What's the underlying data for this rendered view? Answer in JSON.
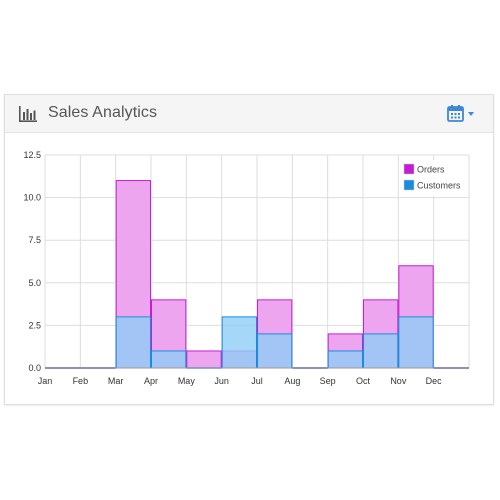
{
  "widget": {
    "title": "Sales Analytics",
    "header_icon": "bar-chart-icon",
    "toolbar_icon": "calendar-icon",
    "toolbar_caret_icon": "caret-down-icon",
    "accent_color": "#3d87d6"
  },
  "chart_data": {
    "type": "bar",
    "stacked": false,
    "categories": [
      "Jan",
      "Feb",
      "Mar",
      "Apr",
      "May",
      "Jun",
      "Jul",
      "Aug",
      "Sep",
      "Oct",
      "Nov",
      "Dec"
    ],
    "series": [
      {
        "name": "Orders",
        "values": [
          0,
          0,
          11,
          4,
          1,
          1,
          4,
          0,
          2,
          4,
          6,
          0
        ],
        "color": "#c61dd4",
        "fill": "#eda5ef"
      },
      {
        "name": "Customers",
        "values": [
          0,
          0,
          3,
          1,
          0,
          3,
          2,
          0,
          1,
          2,
          3,
          0
        ],
        "color": "#1a8ce0",
        "fill": "#8ecdf7"
      }
    ],
    "y_ticks": [
      "0.0",
      "2.5",
      "5.0",
      "7.5",
      "10.0",
      "12.5"
    ],
    "ylim": [
      0,
      12.5
    ],
    "grid": true,
    "legend_position": "top-right"
  }
}
